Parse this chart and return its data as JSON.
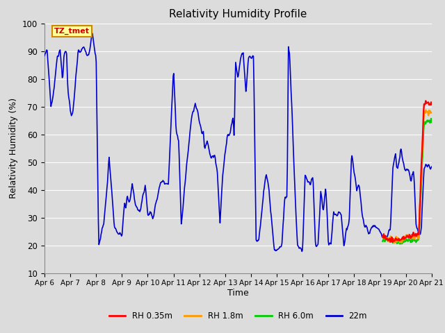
{
  "title": "Relativity Humidity Profile",
  "xlabel": "Time",
  "ylabel": "Relativity Humidity (%)",
  "ylim": [
    10,
    100
  ],
  "yticks": [
    10,
    20,
    30,
    40,
    50,
    60,
    70,
    80,
    90,
    100
  ],
  "background_color": "#dcdcdc",
  "plot_bg_color": "#dcdcdc",
  "legend_label": "TZ_tmet",
  "legend_box_color": "#ffff99",
  "legend_box_edge": "#cc8800",
  "legend_text_color": "#cc0000",
  "series_colors": {
    "RH_035m": "#ff0000",
    "RH_18m": "#ff9900",
    "RH_60m": "#00cc00",
    "22m": "#0000cc"
  },
  "series_labels": [
    "RH 0.35m",
    "RH 1.8m",
    "RH 6.0m",
    "22m"
  ],
  "xticklabels": [
    "Apr 6",
    "Apr 7",
    "Apr 8",
    "Apr 9",
    "Apr 10",
    "Apr 11",
    "Apr 12",
    "Apr 13",
    "Apr 14",
    "Apr 15",
    "Apr 16",
    "Apr 17",
    "Apr 18",
    "Apr 19",
    "Apr 20",
    "Apr 21"
  ],
  "grid_color": "#ffffff",
  "line_width": 1.2,
  "figsize": [
    6.4,
    4.8
  ],
  "dpi": 100
}
